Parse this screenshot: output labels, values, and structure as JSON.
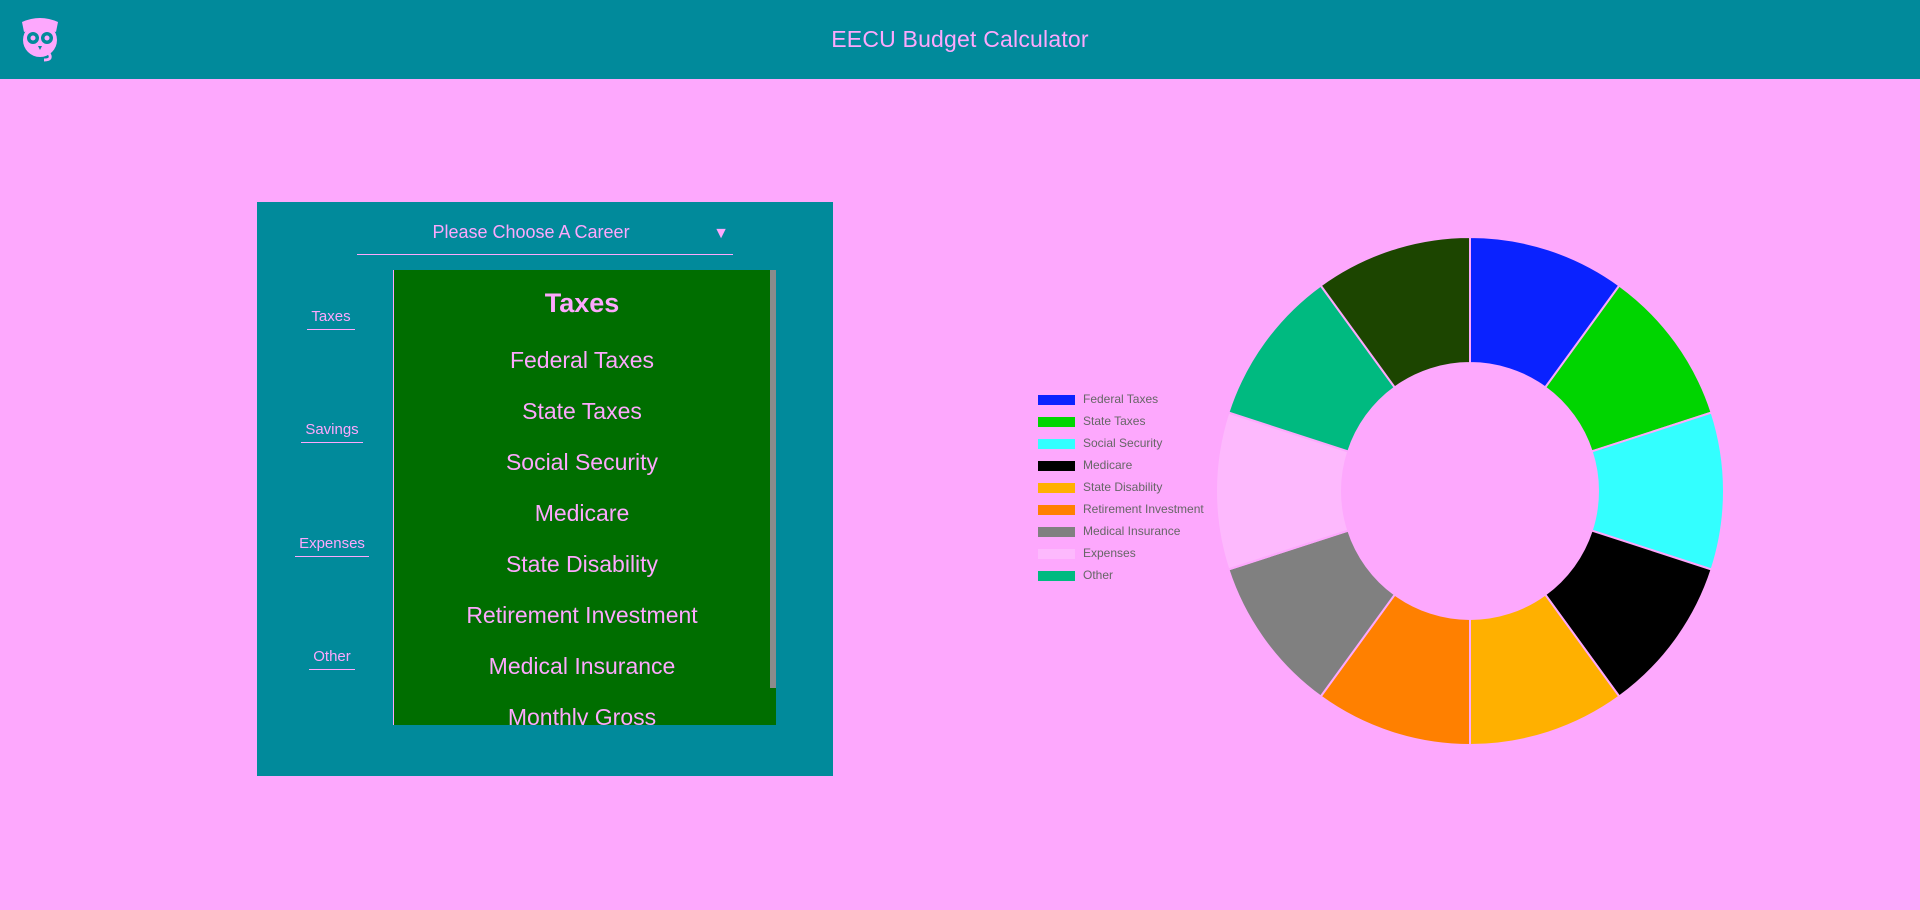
{
  "header": {
    "title": "EECU Budget Calculator",
    "logo_icon": "owl-logo-icon"
  },
  "career_select": {
    "label": "Please Choose A Career",
    "arrow": "▼"
  },
  "side_nav": [
    {
      "label": "Taxes"
    },
    {
      "label": "Savings"
    },
    {
      "label": "Expenses"
    },
    {
      "label": "Other"
    }
  ],
  "list": {
    "heading": "Taxes",
    "items": [
      {
        "label": "Federal Taxes"
      },
      {
        "label": "State Taxes"
      },
      {
        "label": "Social Security"
      },
      {
        "label": "Medicare"
      },
      {
        "label": "State Disability"
      },
      {
        "label": "Retirement Investment"
      },
      {
        "label": "Medical Insurance"
      },
      {
        "label": "Monthly Gross"
      }
    ]
  },
  "chart_data": {
    "type": "pie",
    "donut": true,
    "legend_position": "left",
    "series": [
      {
        "name": "Federal Taxes",
        "value": 1,
        "color": "#0A22FF"
      },
      {
        "name": "State Taxes",
        "value": 1,
        "color": "#00D500"
      },
      {
        "name": "Social Security",
        "value": 1,
        "color": "#33FFFF"
      },
      {
        "name": "Medicare",
        "value": 1,
        "color": "#000000"
      },
      {
        "name": "State Disability",
        "value": 1,
        "color": "#FFB000"
      },
      {
        "name": "Retirement Investment",
        "value": 1,
        "color": "#FF8000"
      },
      {
        "name": "Medical Insurance",
        "value": 1,
        "color": "#808080"
      },
      {
        "name": "Expenses",
        "value": 1,
        "color": "#FDB9FD"
      },
      {
        "name": "Other",
        "value": 1,
        "color": "#00BA80"
      },
      {
        "name": "",
        "value": 1,
        "color": "#1C4500"
      }
    ]
  },
  "colors": {
    "background": "#FDA8FD",
    "header": "#018A9B",
    "panel": "#018A9B",
    "list_background": "#006E00",
    "text": "#FDA8FD"
  }
}
